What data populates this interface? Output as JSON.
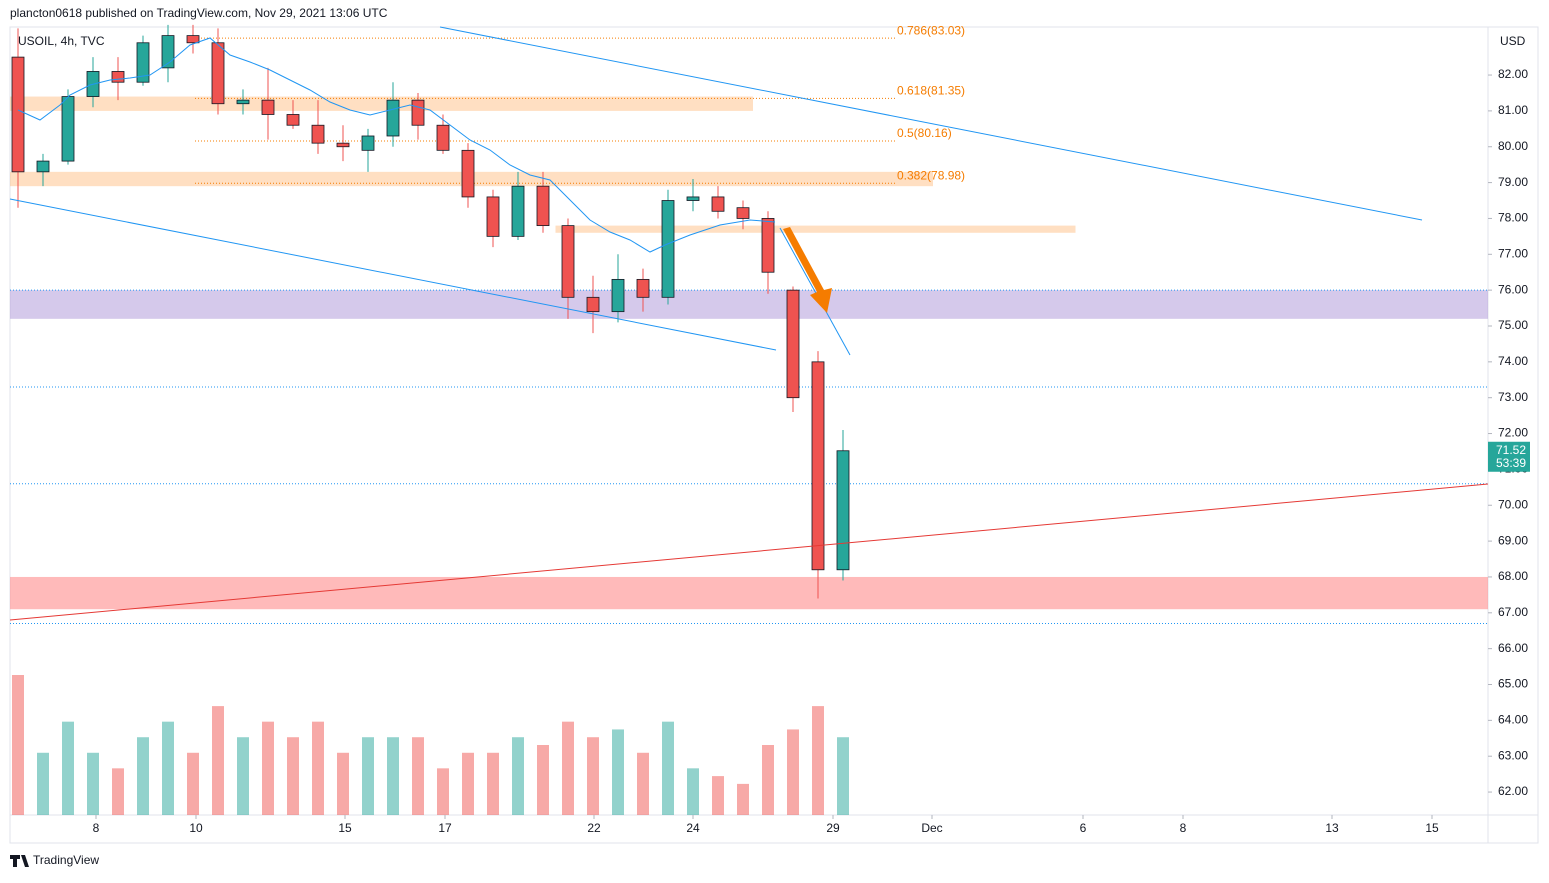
{
  "header": "plancton0618 published on TradingView.com, Nov 29, 2021 13:06 UTC",
  "footer": "TradingView",
  "chart_data": {
    "type": "candlestick",
    "title": "USOIL, 4h, TVC",
    "currency": "USD",
    "countdown": "53:39",
    "up_color": "#26a69a",
    "down_color": "#ef5350",
    "open": [
      82.5,
      79.3,
      79.6,
      81.4,
      82.1,
      81.8,
      82.2,
      83.1,
      82.9,
      81.2,
      81.3,
      80.9,
      80.6,
      80.1,
      79.9,
      80.3,
      81.3,
      80.6,
      79.9,
      78.6,
      77.5,
      78.9,
      77.8,
      75.8,
      75.4,
      76.3,
      75.8,
      78.5,
      78.6,
      78.3,
      78.0,
      76.0,
      74.0,
      68.2
    ],
    "high": [
      83.3,
      79.8,
      81.6,
      82.5,
      82.5,
      83.1,
      83.4,
      83.4,
      83.3,
      81.6,
      82.2,
      81.3,
      81.3,
      80.6,
      80.5,
      81.8,
      81.5,
      80.9,
      80.1,
      78.8,
      79.3,
      79.3,
      78.0,
      76.4,
      77.0,
      76.6,
      78.8,
      79.1,
      78.9,
      78.5,
      78.2,
      76.1,
      74.3,
      72.1
    ],
    "low": [
      78.3,
      78.9,
      79.5,
      81.1,
      81.3,
      81.7,
      81.8,
      82.6,
      80.9,
      80.9,
      80.2,
      80.5,
      79.8,
      79.6,
      79.3,
      80.0,
      80.2,
      79.8,
      78.3,
      77.2,
      77.4,
      77.6,
      75.2,
      74.8,
      75.1,
      75.4,
      75.6,
      78.2,
      78.0,
      77.7,
      75.9,
      72.6,
      67.4,
      67.9
    ],
    "close": [
      79.3,
      79.6,
      81.4,
      82.1,
      81.8,
      82.9,
      83.1,
      82.9,
      81.2,
      81.3,
      80.9,
      80.6,
      80.1,
      80.0,
      80.3,
      81.3,
      80.6,
      79.9,
      78.6,
      77.5,
      78.9,
      77.8,
      75.8,
      75.4,
      76.3,
      75.8,
      78.5,
      78.6,
      78.2,
      78.0,
      76.5,
      73.0,
      68.2,
      71.52
    ],
    "volume": [
      90,
      40,
      60,
      40,
      30,
      50,
      60,
      40,
      70,
      50,
      60,
      50,
      60,
      40,
      50,
      50,
      50,
      30,
      40,
      40,
      50,
      45,
      60,
      50,
      55,
      40,
      60,
      30,
      25,
      20,
      45,
      55,
      70,
      50
    ],
    "xlim": [
      -0.32,
      58.8
    ],
    "xticks": [
      {
        "value": 3.12,
        "label": "8"
      },
      {
        "value": 7.12,
        "label": "10"
      },
      {
        "value": 13.08,
        "label": "15"
      },
      {
        "value": 17.08,
        "label": "17"
      },
      {
        "value": 23.04,
        "label": "22"
      },
      {
        "value": 27.0,
        "label": "24"
      },
      {
        "value": 32.6,
        "label": "29"
      },
      {
        "value": 36.56,
        "label": "Dec"
      },
      {
        "value": 42.6,
        "label": "6"
      },
      {
        "value": 46.6,
        "label": "8"
      },
      {
        "value": 52.56,
        "label": "13"
      },
      {
        "value": 56.56,
        "label": "15"
      }
    ],
    "ylim": [
      61.36,
      83.34
    ],
    "yticks": [
      {
        "value": 62,
        "label": "62.00"
      },
      {
        "value": 63,
        "label": "63.00"
      },
      {
        "value": 64,
        "label": "64.00"
      },
      {
        "value": 65,
        "label": "65.00"
      },
      {
        "value": 66,
        "label": "66.00"
      },
      {
        "value": 67,
        "label": "67.00"
      },
      {
        "value": 68,
        "label": "68.00"
      },
      {
        "value": 69,
        "label": "69.00"
      },
      {
        "value": 70,
        "label": "70.00"
      },
      {
        "value": 71,
        "label": "71.00"
      },
      {
        "value": 72,
        "label": "72.00"
      },
      {
        "value": 73,
        "label": "73.00"
      },
      {
        "value": 74,
        "label": "74.00"
      },
      {
        "value": 75,
        "label": "75.00"
      },
      {
        "value": 76,
        "label": "76.00"
      },
      {
        "value": 77,
        "label": "77.00"
      },
      {
        "value": 78,
        "label": "78.00"
      },
      {
        "value": 79,
        "label": "79.00"
      },
      {
        "value": 80,
        "label": "80.00"
      },
      {
        "value": 81,
        "label": "81.00"
      },
      {
        "value": 82,
        "label": "82.00"
      }
    ],
    "fib_levels": [
      {
        "value": 83.03,
        "label": "0.786(83.03)"
      },
      {
        "value": 81.35,
        "label": "0.618(81.35)"
      },
      {
        "value": 80.16,
        "label": "0.5(80.16)"
      },
      {
        "value": 78.98,
        "label": "0.382(78.98)"
      }
    ],
    "zones": [
      {
        "from": 81.0,
        "to": 81.4,
        "x_from": -0.32,
        "x_to": 29.4,
        "color": "rgba(255,183,120,0.45)"
      },
      {
        "from": 78.9,
        "to": 79.3,
        "x_from": -0.32,
        "x_to": 36.6,
        "color": "rgba(255,183,120,0.45)"
      },
      {
        "from": 77.6,
        "to": 77.8,
        "x_from": 21.5,
        "x_to": 42.3,
        "color": "rgba(255,183,120,0.45)"
      },
      {
        "from": 75.2,
        "to": 76.0,
        "x_from": -0.32,
        "x_to": 58.8,
        "color": "rgba(179,157,219,0.55)"
      },
      {
        "from": 67.1,
        "to": 68.0,
        "x_from": -0.32,
        "x_to": 58.8,
        "color": "rgba(255,140,140,0.6)"
      }
    ],
    "hlines": [
      76.0,
      73.3,
      70.6,
      66.7
    ]
  }
}
